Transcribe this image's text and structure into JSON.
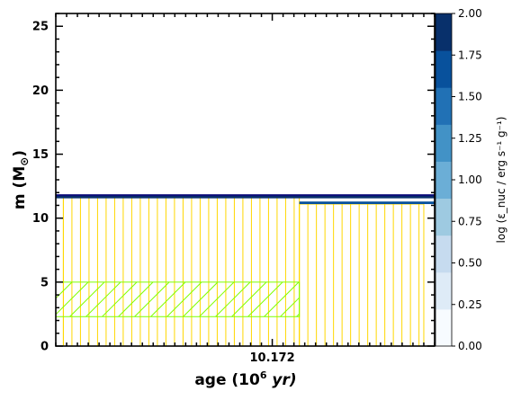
{
  "chart_data": {
    "type": "kippenhahn",
    "xlabel": "age (10",
    "xlabel_sup": "6",
    "xlabel_unit": " yr)",
    "ylabel": "m (M",
    "ylabel_sub": "⊙",
    "ylabel_close": ")",
    "xlim": [
      10.17,
      10.1735
    ],
    "ylim": [
      0,
      26
    ],
    "y_ticks": [
      0,
      5,
      10,
      15,
      20,
      25
    ],
    "x_tick_labels": [
      {
        "value": 10.172,
        "label": "10.172"
      }
    ],
    "colorbar": {
      "label": "log (ε_nuc / erg s⁻¹ g⁻¹)",
      "range": [
        0,
        2
      ],
      "ticks": [
        "0.00",
        "0.25",
        "0.50",
        "0.75",
        "1.00",
        "1.25",
        "1.50",
        "1.75",
        "2.00"
      ],
      "colors": [
        "#f7fbff",
        "#deebf7",
        "#c6dbef",
        "#9ecae1",
        "#6baed6",
        "#4292c6",
        "#2171b5",
        "#08519c",
        "#08306b"
      ]
    },
    "regions": [
      {
        "name": "convection",
        "color": "#ffd700",
        "x": [
          10.17007,
          10.17225
        ],
        "y": [
          0,
          11.7
        ]
      },
      {
        "name": "convection",
        "color": "#ffd700",
        "x": [
          10.17225,
          10.1734
        ],
        "y": [
          0,
          11.1
        ]
      },
      {
        "name": "overshoot",
        "color": "#7fff00",
        "x": [
          10.17,
          10.17225
        ],
        "y": [
          2.3,
          5.0
        ]
      }
    ],
    "burning_band": [
      {
        "x": [
          10.17,
          10.1735
        ],
        "y": [
          11.55,
          11.75
        ],
        "value": 2.0
      },
      {
        "x": [
          10.17225,
          10.1735
        ],
        "y": [
          11.1,
          11.3
        ],
        "value": 1.7
      }
    ],
    "surface": {
      "color": "#0b0b7a",
      "x": [
        10.17,
        10.1735
      ],
      "y": 11.8
    }
  }
}
